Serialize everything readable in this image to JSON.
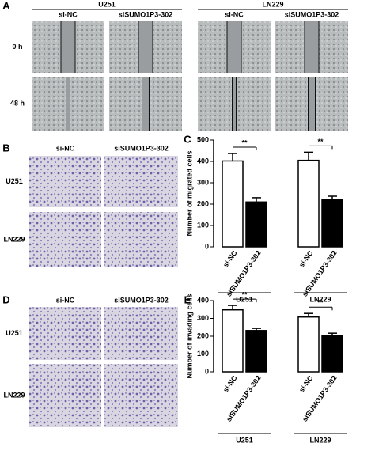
{
  "panels": {
    "a": {
      "label": "A",
      "cell_lines": [
        "U251",
        "LN229"
      ],
      "conditions": [
        [
          "si-NC",
          "siSUMO1P3-302"
        ],
        [
          "si-NC",
          "siSUMO1P3-302"
        ]
      ],
      "times": [
        "0 h",
        "48 h"
      ]
    },
    "b": {
      "label": "B",
      "conditions": [
        "si-NC",
        "siSUMO1P3-302"
      ],
      "cell_lines": [
        "U251",
        "LN229"
      ]
    },
    "d": {
      "label": "D",
      "conditions": [
        "si-NC",
        "siSUMO1P3-302"
      ],
      "cell_lines": [
        "U251",
        "LN229"
      ]
    }
  },
  "chart_data": [
    {
      "type": "bar",
      "panel_label": "C",
      "y_label": "Number of migrated cells",
      "categories": [
        "si-NC",
        "siSUMO1P3-302",
        "si-NC",
        "siSUMO1P3-302"
      ],
      "groups": [
        "U251",
        "LN229"
      ],
      "values": [
        402,
        210,
        405,
        220
      ],
      "errors": [
        35,
        20,
        38,
        17
      ],
      "colors": [
        "#ffffff",
        "#000000",
        "#ffffff",
        "#000000"
      ],
      "significance": [
        "**",
        "**"
      ],
      "ylim": [
        0,
        500
      ],
      "yticks": [
        0,
        100,
        200,
        300,
        400,
        500
      ]
    },
    {
      "type": "bar",
      "panel_label": "E",
      "y_label": "Number of invading cells",
      "categories": [
        "si-NC",
        "siSUMO1P3-302",
        "si-NC",
        "siSUMO1P3-302"
      ],
      "groups": [
        "U251",
        "LN229"
      ],
      "values": [
        348,
        232,
        308,
        202
      ],
      "errors": [
        25,
        12,
        20,
        15
      ],
      "colors": [
        "#ffffff",
        "#000000",
        "#ffffff",
        "#000000"
      ],
      "significance": [
        "**",
        "**"
      ],
      "ylim": [
        0,
        400
      ],
      "yticks": [
        0,
        100,
        200,
        300,
        400
      ]
    }
  ]
}
